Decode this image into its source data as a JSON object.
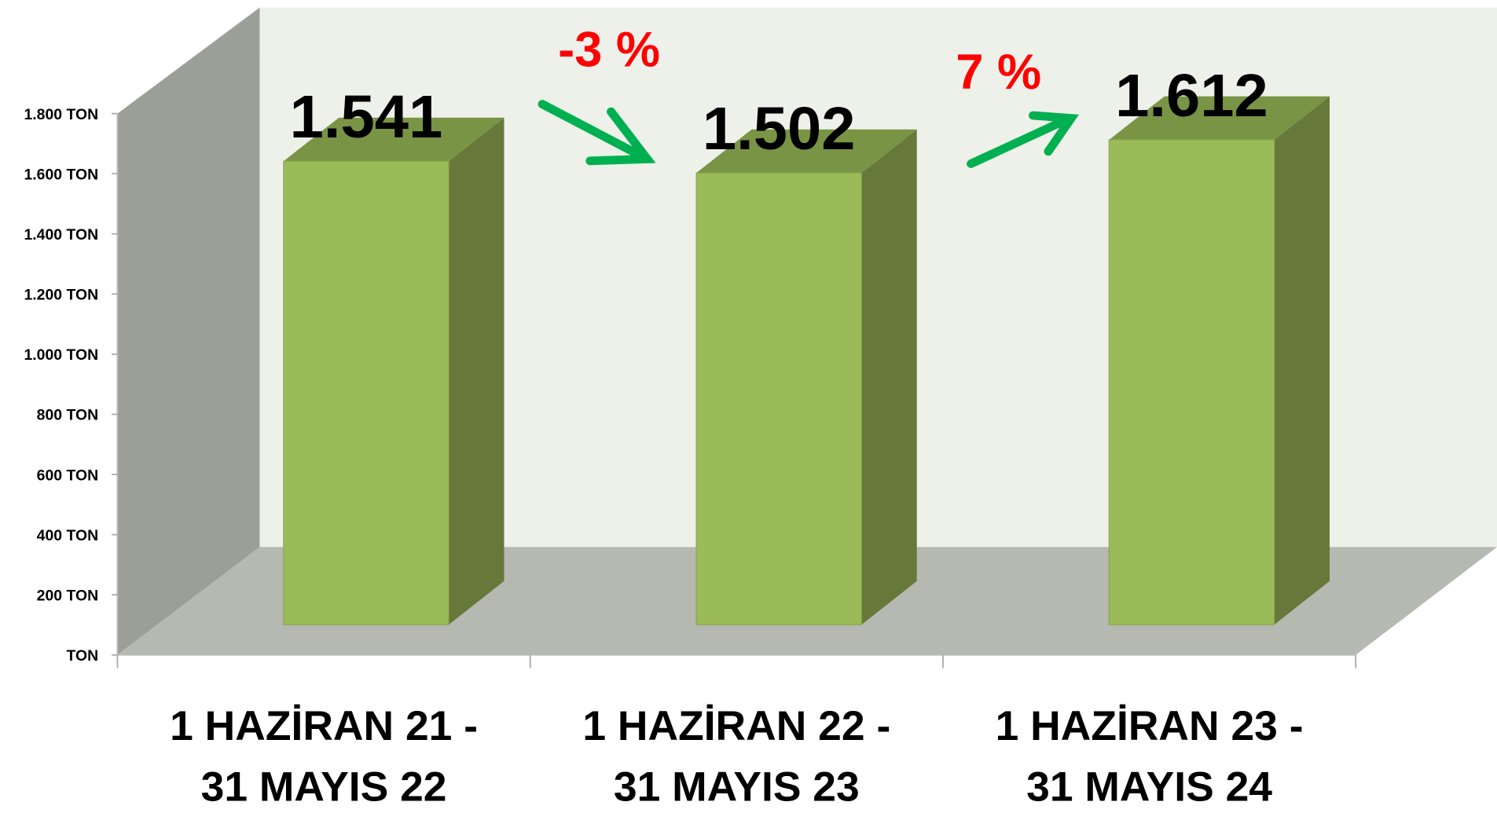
{
  "chart_data": {
    "type": "bar3d",
    "categories": [
      [
        "1 HAZİRAN 21 -",
        "31 MAYIS 22"
      ],
      [
        "1 HAZİRAN 22 -",
        "31 MAYIS 23"
      ],
      [
        "1 HAZİRAN 23 -",
        "31 MAYIS 24"
      ]
    ],
    "values": [
      1541,
      1502,
      1612
    ],
    "value_labels": [
      "1.541",
      "1.502",
      "1.612"
    ],
    "color": "#9bbb59",
    "ylim": [
      0,
      1800
    ],
    "yticks": [
      {
        "value": 0,
        "label": "TON"
      },
      {
        "value": 200,
        "label": "200 TON"
      },
      {
        "value": 400,
        "label": "400 TON"
      },
      {
        "value": 600,
        "label": "600 TON"
      },
      {
        "value": 800,
        "label": "800 TON"
      },
      {
        "value": 1000,
        "label": "1.000 TON"
      },
      {
        "value": 1200,
        "label": "1.200 TON"
      },
      {
        "value": 1400,
        "label": "1.400 TON"
      },
      {
        "value": 1600,
        "label": "1.600 TON"
      },
      {
        "value": 1800,
        "label": "1.800 TON"
      }
    ],
    "annotations": [
      "-3 %",
      "7 %"
    ]
  }
}
